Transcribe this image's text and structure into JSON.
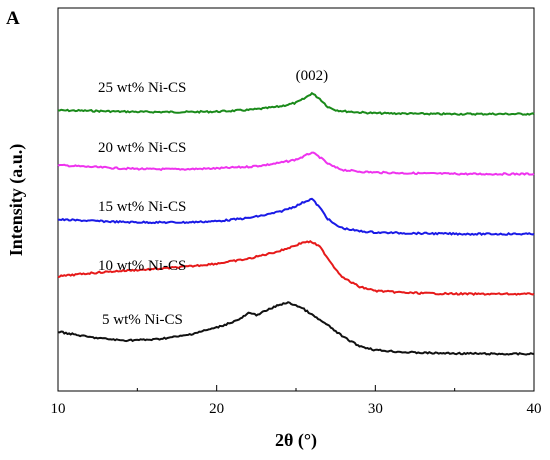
{
  "chart_data": {
    "type": "line",
    "panel_label": "A",
    "xlabel": "2θ (°)",
    "ylabel": "Intensity (a.u.)",
    "xlim": [
      10,
      40
    ],
    "xticks": [
      "10",
      "20",
      "30",
      "40"
    ],
    "yticks_shown": false,
    "grid": false,
    "legend": "inline labels above each curve",
    "annotations": [
      {
        "text": "(002)",
        "x": 26
      }
    ],
    "series": [
      {
        "name": "25 wt% Ni-CS",
        "color": "#1a8a1a",
        "offset": 4,
        "x": [
          10,
          12,
          14,
          16,
          18,
          20,
          22,
          23,
          24,
          25,
          25.5,
          26,
          26.5,
          27,
          27.5,
          28,
          29,
          30,
          32,
          34,
          36,
          38,
          40
        ],
        "y": [
          0.09,
          0.08,
          0.06,
          0.05,
          0.05,
          0.06,
          0.1,
          0.14,
          0.19,
          0.28,
          0.38,
          0.52,
          0.38,
          0.18,
          0.1,
          0.07,
          0.04,
          0.02,
          0.01,
          0.0,
          0.0,
          0.0,
          0.0
        ]
      },
      {
        "name": "20 wt% Ni-CS",
        "color": "#ee33ee",
        "offset": 3,
        "x": [
          10,
          12,
          14,
          16,
          18,
          20,
          22,
          23,
          24,
          25,
          25.5,
          26,
          26.5,
          27,
          27.5,
          28,
          29,
          30,
          32,
          34,
          36,
          38,
          40
        ],
        "y": [
          0.22,
          0.18,
          0.14,
          0.12,
          0.12,
          0.14,
          0.18,
          0.22,
          0.28,
          0.36,
          0.44,
          0.54,
          0.42,
          0.26,
          0.16,
          0.1,
          0.06,
          0.04,
          0.02,
          0.01,
          0.0,
          0.0,
          0.0
        ]
      },
      {
        "name": "15 wt% Ni-CS",
        "color": "#1a1ae6",
        "offset": 2,
        "x": [
          10,
          12,
          14,
          16,
          18,
          20,
          22,
          23,
          24,
          25,
          25.5,
          26,
          26.5,
          27,
          27.5,
          28,
          29,
          30,
          32,
          34,
          36,
          38,
          40
        ],
        "y": [
          0.36,
          0.33,
          0.3,
          0.29,
          0.29,
          0.32,
          0.4,
          0.47,
          0.56,
          0.7,
          0.8,
          0.88,
          0.66,
          0.38,
          0.22,
          0.14,
          0.07,
          0.04,
          0.02,
          0.01,
          0.0,
          0.0,
          0.0
        ]
      },
      {
        "name": "10 wt% Ni-CS",
        "color": "#e61a1a",
        "offset": 1,
        "x": [
          10,
          12,
          14,
          16,
          18,
          20,
          22,
          23,
          24,
          25,
          25.5,
          26,
          26.5,
          27,
          27.5,
          28,
          29,
          30,
          32,
          34,
          36,
          38,
          40
        ],
        "y": [
          0.44,
          0.52,
          0.58,
          0.62,
          0.68,
          0.76,
          0.88,
          0.98,
          1.08,
          1.22,
          1.3,
          1.3,
          1.18,
          0.9,
          0.62,
          0.4,
          0.18,
          0.08,
          0.03,
          0.01,
          0.0,
          0.0,
          0.0
        ]
      },
      {
        "name": "5 wt% Ni-CS",
        "color": "#111111",
        "offset": 0,
        "x": [
          10,
          12,
          14,
          16,
          18,
          20,
          21,
          21.5,
          22,
          22.5,
          23,
          24,
          24.5,
          25,
          25.5,
          26,
          27,
          28,
          29,
          30,
          32,
          34,
          36,
          38,
          40
        ],
        "y": [
          0.56,
          0.42,
          0.34,
          0.36,
          0.46,
          0.66,
          0.8,
          0.88,
          1.02,
          0.98,
          1.06,
          1.24,
          1.28,
          1.22,
          1.12,
          0.98,
          0.72,
          0.42,
          0.2,
          0.1,
          0.04,
          0.02,
          0.01,
          0.0,
          0.0
        ]
      }
    ]
  }
}
